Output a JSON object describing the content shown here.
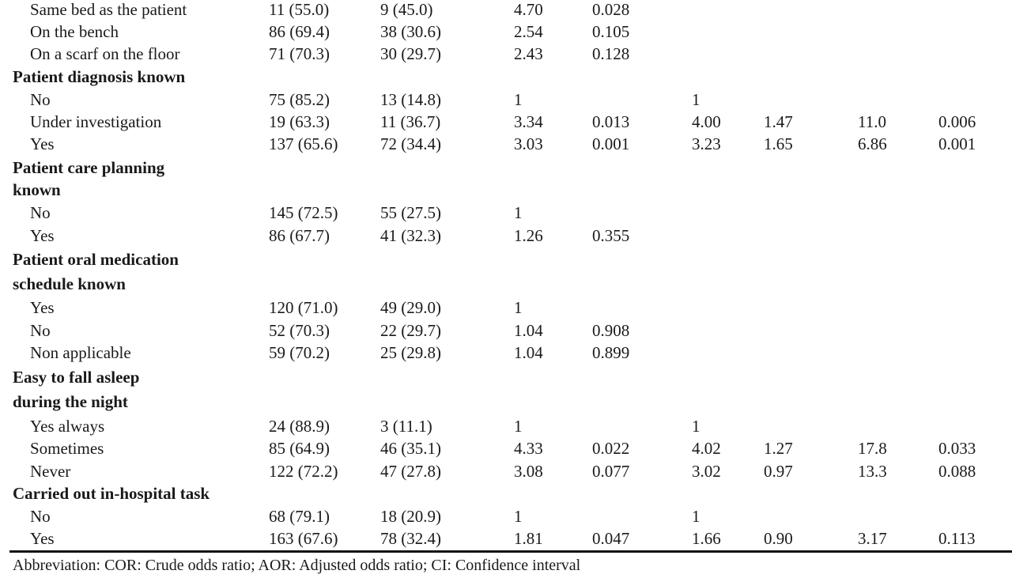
{
  "rows": [
    {
      "label": "Same bed as the patient",
      "n_yes": "11 (55.0)",
      "n_no": "9 (45.0)",
      "cor": "4.70",
      "p_cor": "0.028"
    },
    {
      "label": "On the bench",
      "n_yes": "86 (69.4)",
      "n_no": "38 (30.6)",
      "cor": "2.54",
      "p_cor": "0.105"
    },
    {
      "label": "On a scarf on the floor",
      "n_yes": "71 (70.3)",
      "n_no": "30 (29.7)",
      "cor": "2.43",
      "p_cor": "0.128"
    },
    {
      "header": true,
      "label": "Patient diagnosis known"
    },
    {
      "label": "No",
      "n_yes": "75 (85.2)",
      "n_no": "13 (14.8)",
      "cor": "1",
      "aor": "1"
    },
    {
      "label": "Under investigation",
      "n_yes": "19 (63.3)",
      "n_no": "11 (36.7)",
      "cor": "3.34",
      "p_cor": "0.013",
      "aor": "4.00",
      "ci_low": "1.47",
      "ci_high": "11.0",
      "p_aor": "0.006"
    },
    {
      "label": "Yes",
      "n_yes": "137 (65.6)",
      "n_no": "72 (34.4)",
      "cor": "3.03",
      "p_cor": "0.001",
      "aor": "3.23",
      "ci_low": "1.65",
      "ci_high": "6.86",
      "p_aor": "0.001"
    },
    {
      "header": true,
      "label": "Patient care planning"
    },
    {
      "header": true,
      "label": "known"
    },
    {
      "label": "No",
      "n_yes": "145 (72.5)",
      "n_no": "55 (27.5)",
      "cor": "1"
    },
    {
      "label": "Yes",
      "n_yes": "86 (67.7)",
      "n_no": "41 (32.3)",
      "cor": "1.26",
      "p_cor": "0.355"
    },
    {
      "header": true,
      "label": "Patient oral medication"
    },
    {
      "header": true,
      "label": "schedule known"
    },
    {
      "label": "Yes",
      "n_yes": "120 (71.0)",
      "n_no": "49 (29.0)",
      "cor": "1"
    },
    {
      "label": "No",
      "n_yes": "52 (70.3)",
      "n_no": "22 (29.7)",
      "cor": "1.04",
      "p_cor": "0.908"
    },
    {
      "label": "Non applicable",
      "n_yes": "59 (70.2)",
      "n_no": "25 (29.8)",
      "cor": "1.04",
      "p_cor": "0.899"
    },
    {
      "header": true,
      "label": "Easy to fall asleep"
    },
    {
      "header": true,
      "label": "during the night"
    },
    {
      "label": "Yes always",
      "n_yes": "24 (88.9)",
      "n_no": "3 (11.1)",
      "cor": "1",
      "aor": "1"
    },
    {
      "label": "Sometimes",
      "n_yes": "85 (64.9)",
      "n_no": "46 (35.1)",
      "cor": "4.33",
      "p_cor": "0.022",
      "aor": "4.02",
      "ci_low": "1.27",
      "ci_high": "17.8",
      "p_aor": "0.033"
    },
    {
      "label": "Never",
      "n_yes": "122 (72.2)",
      "n_no": "47 (27.8)",
      "cor": "3.08",
      "p_cor": "0.077",
      "aor": "3.02",
      "ci_low": "0.97",
      "ci_high": "13.3",
      "p_aor": "0.088"
    },
    {
      "header": true,
      "label": "Carried out in-hospital task"
    },
    {
      "label": "No",
      "n_yes": "68 (79.1)",
      "n_no": "18 (20.9)",
      "cor": "1",
      "aor": "1"
    },
    {
      "label": "Yes",
      "n_yes": "163 (67.6)",
      "n_no": "78 (32.4)",
      "cor": "1.81",
      "p_cor": "0.047",
      "aor": "1.66",
      "ci_low": "0.90",
      "ci_high": "3.17",
      "p_aor": "0.113"
    }
  ],
  "footnote": "Abbreviation: COR: Crude odds ratio; AOR: Adjusted odds ratio; CI: Confidence interval"
}
